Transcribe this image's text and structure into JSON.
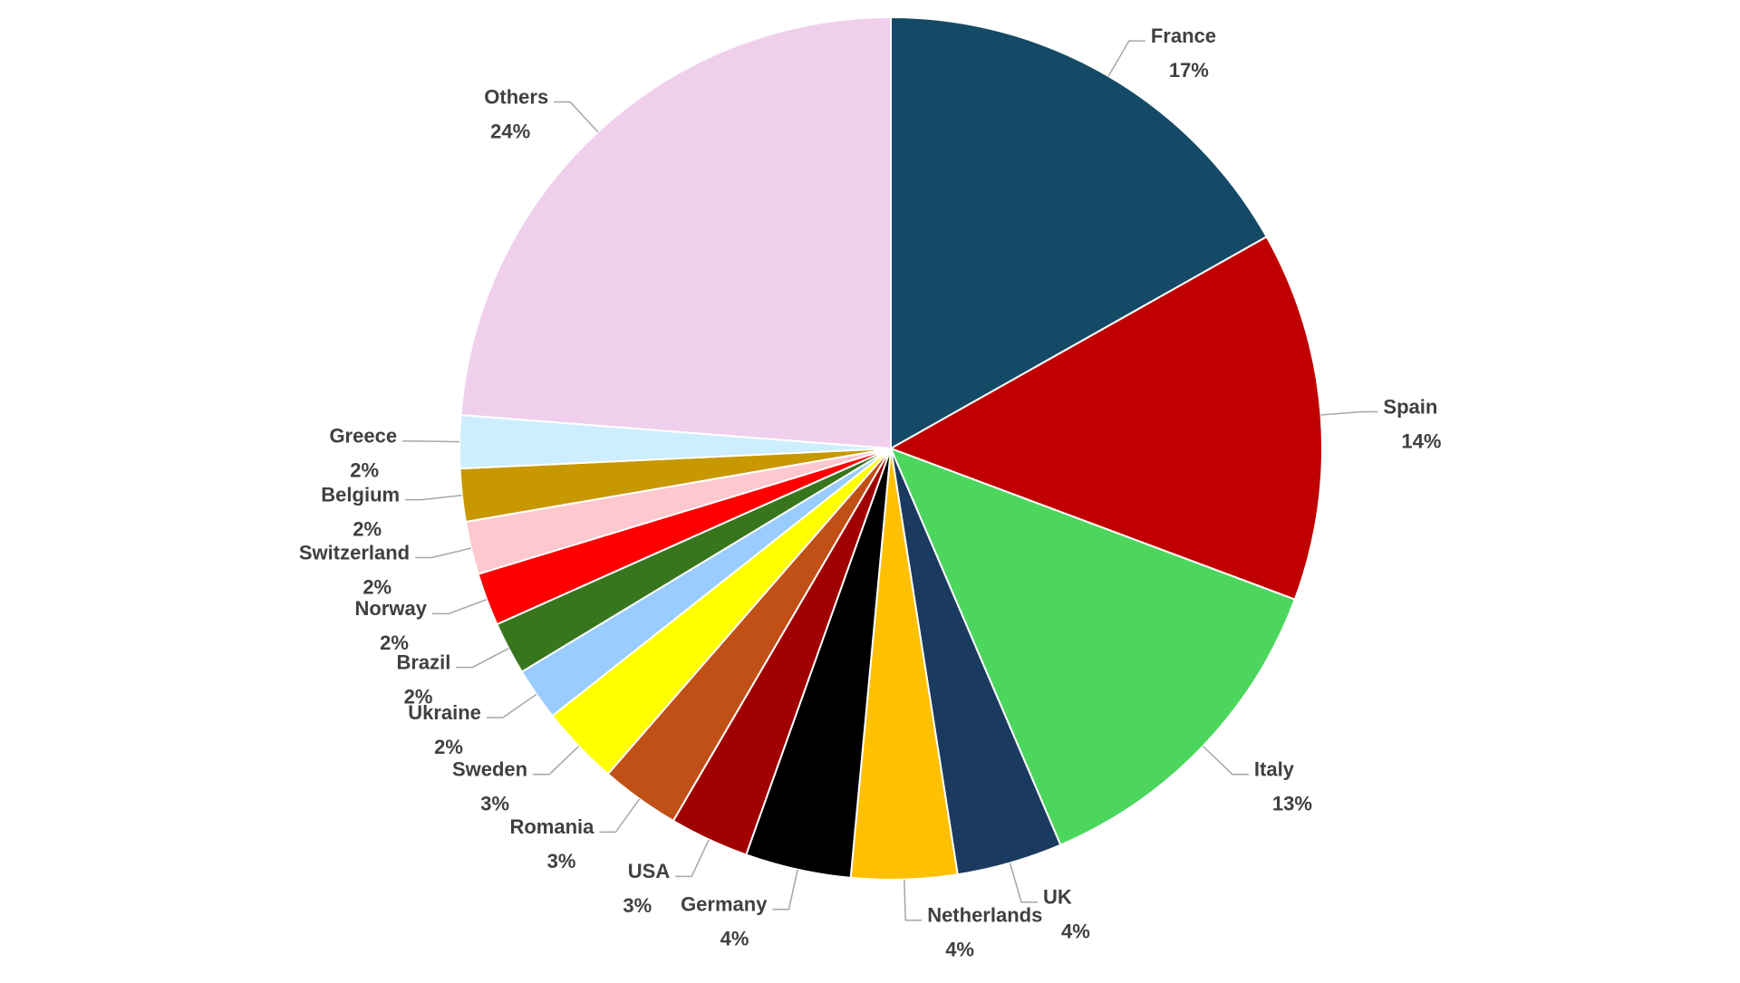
{
  "chart_data": {
    "type": "pie",
    "categories": [
      "France",
      "Spain",
      "Italy",
      "UK",
      "Netherlands",
      "Germany",
      "USA",
      "Romania",
      "Sweden",
      "Ukraine",
      "Brazil",
      "Norway",
      "Switzerland",
      "Belgium",
      "Greece",
      "Others"
    ],
    "values": [
      17,
      14,
      13,
      4,
      4,
      4,
      3,
      3,
      3,
      2,
      2,
      2,
      2,
      2,
      2,
      24
    ],
    "value_labels": [
      "17%",
      "14%",
      "13%",
      "4%",
      "4%",
      "4%",
      "3%",
      "3%",
      "3%",
      "2%",
      "2%",
      "2%",
      "2%",
      "2%",
      "2%",
      "24%"
    ],
    "colors": [
      "#154a66",
      "#c00000",
      "#4cd65e",
      "#1b3a60",
      "#ffc000",
      "#000000",
      "#a00000",
      "#c05016",
      "#ffff00",
      "#99ccff",
      "#38761d",
      "#ff0000",
      "#ffc7ce",
      "#c79800",
      "#cceeff",
      "#f0cfed"
    ]
  }
}
